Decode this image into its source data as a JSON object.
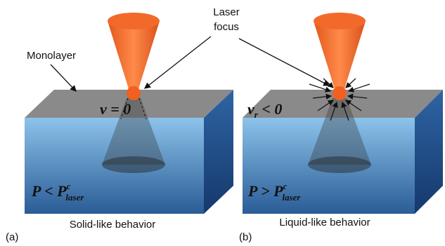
{
  "labels": {
    "laser_focus": [
      "Laser",
      "focus"
    ],
    "monolayer": "Monolayer"
  },
  "panels": [
    {
      "tag": "(a)",
      "caption": "Solid-like behavior",
      "velocity": {
        "symbol": "v",
        "relation": "= 0"
      },
      "power": {
        "symbol": "P",
        "relation": "<",
        "threshold": "P",
        "superscript": "c",
        "subscript": "laser"
      }
    },
    {
      "tag": "(b)",
      "caption": "Liquid-like behavior",
      "velocity": {
        "symbol": "v",
        "subscript": "r",
        "relation": "< 0"
      },
      "power": {
        "symbol": "P",
        "relation": ">",
        "threshold": "P",
        "superscript": "c",
        "subscript": "laser"
      }
    }
  ]
}
